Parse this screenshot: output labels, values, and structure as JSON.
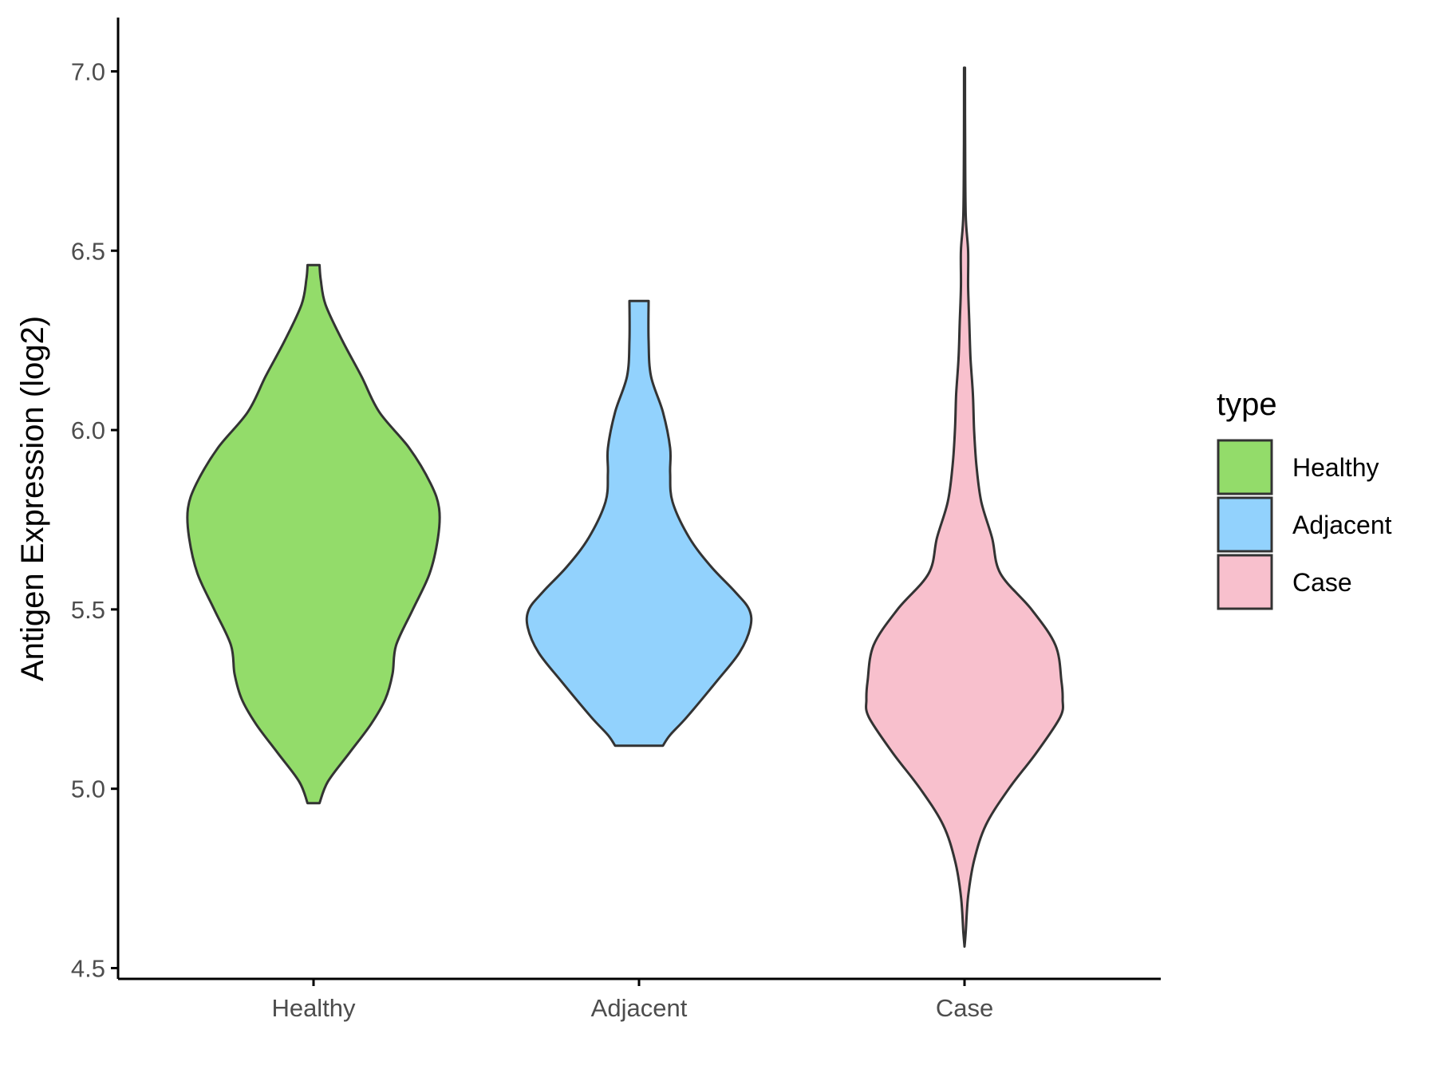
{
  "chart_data": {
    "type": "violin",
    "title": "",
    "xlabel": "",
    "ylabel": "Antigen Expression (log2)",
    "ylim": [
      4.47,
      7.15
    ],
    "y_ticks": [
      "4.5",
      "5.0",
      "5.5",
      "6.0",
      "6.5",
      "7.0"
    ],
    "grid": false,
    "legend": {
      "title": "type",
      "placement": "right"
    },
    "categories": [
      "Healthy",
      "Adjacent",
      "Case"
    ],
    "series": [
      {
        "name": "Healthy",
        "color": "#93dc6a",
        "min": 4.96,
        "max": 6.46,
        "profile": [
          [
            4.96,
            0.05
          ],
          [
            5.02,
            0.12
          ],
          [
            5.1,
            0.3
          ],
          [
            5.18,
            0.48
          ],
          [
            5.25,
            0.6
          ],
          [
            5.32,
            0.66
          ],
          [
            5.4,
            0.69
          ],
          [
            5.5,
            0.83
          ],
          [
            5.6,
            0.97
          ],
          [
            5.7,
            1.04
          ],
          [
            5.78,
            1.05
          ],
          [
            5.85,
            0.98
          ],
          [
            5.95,
            0.8
          ],
          [
            6.05,
            0.55
          ],
          [
            6.15,
            0.4
          ],
          [
            6.25,
            0.24
          ],
          [
            6.35,
            0.1
          ],
          [
            6.42,
            0.06
          ],
          [
            6.46,
            0.05
          ]
        ]
      },
      {
        "name": "Adjacent",
        "color": "#92d2fd",
        "min": 5.12,
        "max": 6.36,
        "profile": [
          [
            5.12,
            0.2
          ],
          [
            5.15,
            0.26
          ],
          [
            5.2,
            0.4
          ],
          [
            5.3,
            0.65
          ],
          [
            5.38,
            0.84
          ],
          [
            5.45,
            0.93
          ],
          [
            5.5,
            0.92
          ],
          [
            5.55,
            0.8
          ],
          [
            5.62,
            0.6
          ],
          [
            5.7,
            0.42
          ],
          [
            5.8,
            0.28
          ],
          [
            5.88,
            0.26
          ],
          [
            5.95,
            0.26
          ],
          [
            6.05,
            0.2
          ],
          [
            6.15,
            0.1
          ],
          [
            6.25,
            0.08
          ],
          [
            6.36,
            0.08
          ]
        ]
      },
      {
        "name": "Case",
        "color": "#f8c0cd",
        "min": 4.56,
        "max": 7.01,
        "profile": [
          [
            4.56,
            0.0
          ],
          [
            4.6,
            0.01
          ],
          [
            4.7,
            0.03
          ],
          [
            4.8,
            0.08
          ],
          [
            4.9,
            0.18
          ],
          [
            5.0,
            0.37
          ],
          [
            5.1,
            0.6
          ],
          [
            5.2,
            0.8
          ],
          [
            5.25,
            0.82
          ],
          [
            5.3,
            0.81
          ],
          [
            5.4,
            0.76
          ],
          [
            5.5,
            0.56
          ],
          [
            5.6,
            0.3
          ],
          [
            5.7,
            0.23
          ],
          [
            5.8,
            0.14
          ],
          [
            5.9,
            0.1
          ],
          [
            6.0,
            0.08
          ],
          [
            6.1,
            0.07
          ],
          [
            6.2,
            0.05
          ],
          [
            6.3,
            0.04
          ],
          [
            6.4,
            0.03
          ],
          [
            6.5,
            0.03
          ],
          [
            6.6,
            0.01
          ],
          [
            6.8,
            0.005
          ],
          [
            7.01,
            0.004
          ]
        ]
      }
    ]
  }
}
